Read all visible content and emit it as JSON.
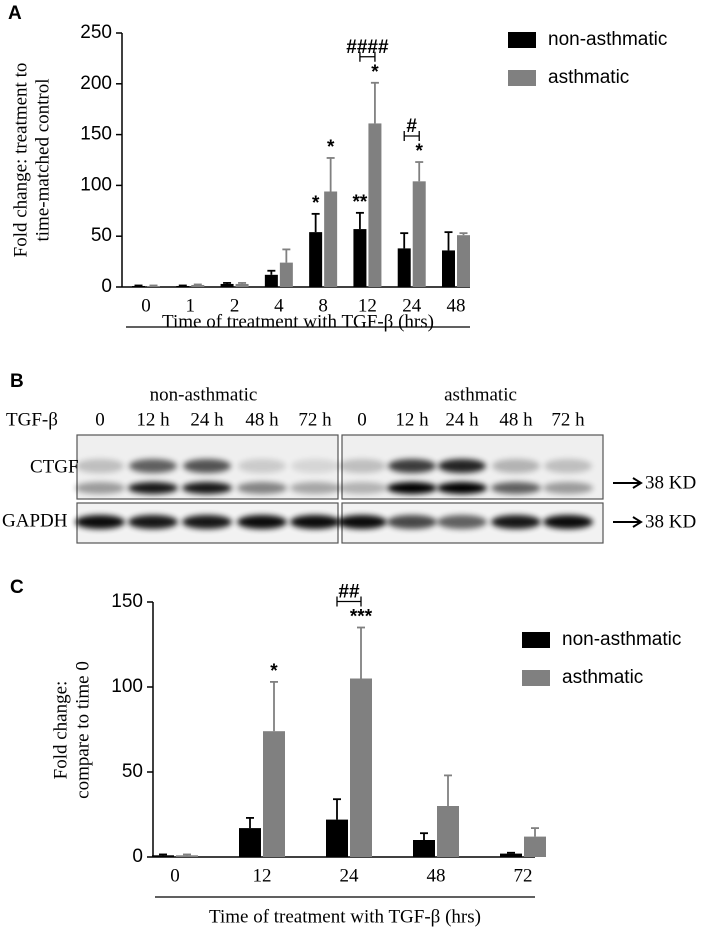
{
  "chart_data": [
    {
      "type": "bar",
      "panel_label": "A",
      "y_label": [
        "Fold change: treatment to",
        "time-matched control"
      ],
      "x_label": "Time of treatment with TGF-β (hrs)",
      "categories": [
        "0",
        "1",
        "2",
        "4",
        "8",
        "12",
        "24",
        "48"
      ],
      "series": [
        {
          "name": "non-asthmatic",
          "color": "#000000",
          "values": [
            1,
            1,
            3,
            12,
            54,
            57,
            38,
            36
          ],
          "errors": [
            0.5,
            0.5,
            1,
            4,
            18,
            16,
            15,
            18
          ]
        },
        {
          "name": "asthmatic",
          "color": "#808080",
          "values": [
            1,
            2,
            3,
            24,
            94,
            161,
            104,
            51
          ],
          "errors": [
            0.5,
            0.5,
            1,
            13,
            33,
            40,
            19,
            2
          ]
        }
      ],
      "ylim": [
        0,
        250
      ],
      "yticks": [
        0,
        50,
        100,
        150,
        200,
        250
      ],
      "annotations": [
        "*",
        "*",
        "**",
        "*",
        "####",
        "*",
        "#"
      ]
    },
    {
      "type": "bar",
      "panel_label": "C",
      "y_label": [
        "Fold change:",
        "compare to time 0"
      ],
      "x_label": "Time of treatment with TGF-β (hrs)",
      "categories": [
        "0",
        "12",
        "24",
        "48",
        "72"
      ],
      "series": [
        {
          "name": "non-asthmatic",
          "color": "#000000",
          "values": [
            1,
            17,
            22,
            10,
            2
          ],
          "errors": [
            0.5,
            6,
            12,
            4,
            0.5
          ]
        },
        {
          "name": "asthmatic",
          "color": "#808080",
          "values": [
            1,
            74,
            105,
            30,
            12
          ],
          "errors": [
            0.5,
            29,
            30,
            18,
            5
          ]
        }
      ],
      "ylim": [
        0,
        150
      ],
      "yticks": [
        0,
        50,
        100,
        150
      ],
      "annotations": [
        "*",
        "***",
        "##"
      ]
    }
  ],
  "blot": {
    "panel_label": "B",
    "groups": [
      "non-asthmatic",
      "asthmatic"
    ],
    "treatment_label": "TGF-β",
    "lanes": [
      "0",
      "12 h",
      "24 h",
      "48 h",
      "72 h"
    ],
    "rows": [
      "CTGF",
      "GAPDH"
    ],
    "markers": [
      "38 KD",
      "38 KD"
    ]
  }
}
